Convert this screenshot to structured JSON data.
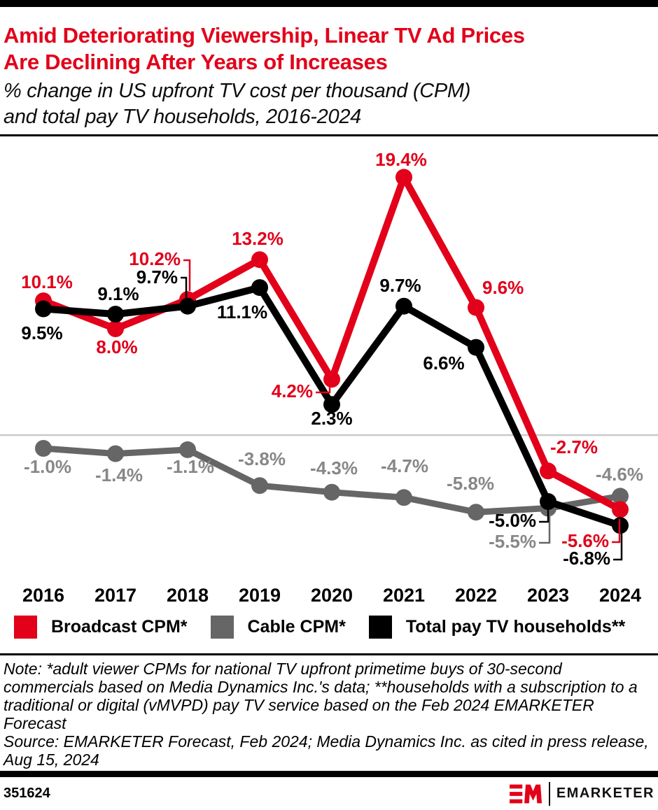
{
  "header": {
    "title_lines": [
      "Amid Deteriorating Viewership, Linear TV Ad Prices",
      "Are Declining After Years of Increases"
    ],
    "subtitle_lines": [
      "% change in US upfront TV cost per thousand (CPM)",
      "and total pay TV households, 2016-2024"
    ]
  },
  "colors": {
    "accent_red": "#e2001a",
    "gray_line": "#666666",
    "gray_label": "#878787",
    "zero_axis": "#c9c9c9",
    "black": "#000000"
  },
  "chart_data": {
    "type": "line",
    "title": "% change in US upfront TV cost per thousand (CPM) and total pay TV households, 2016-2024",
    "xlabel": "",
    "ylabel": "% change",
    "unit": "%",
    "categories": [
      "2016",
      "2017",
      "2018",
      "2019",
      "2020",
      "2021",
      "2022",
      "2023",
      "2024"
    ],
    "series": [
      {
        "id": "broadcast-cpm",
        "name": "Broadcast CPM*",
        "color": "#e2001a",
        "label_color": "#e2001a",
        "values": [
          10.1,
          8.0,
          10.2,
          13.2,
          4.2,
          19.4,
          9.6,
          -2.7,
          -5.6
        ],
        "labels": [
          "10.1%",
          "8.0%",
          "10.2%",
          "13.2%",
          "4.2%",
          "19.4%",
          "9.6%",
          "-2.7%",
          "-5.6%"
        ]
      },
      {
        "id": "cable-cpm",
        "name": "Cable CPM*",
        "color": "#666666",
        "label_color": "#878787",
        "values": [
          -1.0,
          -1.4,
          -1.1,
          -3.8,
          -4.3,
          -4.7,
          -5.8,
          -5.5,
          -4.6
        ],
        "labels": [
          "-1.0%",
          "-1.4%",
          "-1.1%",
          "-3.8%",
          "-4.3%",
          "-4.7%",
          "-5.8%",
          "-5.5%",
          "-4.6%"
        ]
      },
      {
        "id": "pay-tv-households",
        "name": "Total pay TV households**",
        "color": "#000000",
        "label_color": "#000000",
        "values": [
          9.5,
          9.1,
          9.7,
          11.1,
          2.3,
          9.7,
          6.6,
          -5.0,
          -6.8
        ],
        "labels": [
          "9.5%",
          "9.1%",
          "9.7%",
          "11.1%",
          "2.3%",
          "9.7%",
          "6.6%",
          "-5.0%",
          "-6.8%"
        ]
      }
    ],
    "ylim": [
      -8,
      22
    ],
    "zero_line": true,
    "grid": false,
    "legend_position": "bottom"
  },
  "notes": {
    "note_lines": [
      "Note: *adult viewer CPMs for national TV upfront primetime buys of 30-second",
      "commercials based on Media Dynamics Inc.'s data; **households with a subscription to a",
      "traditional or digital (vMVPD) pay TV service based on the Feb 2024 EMARKETER",
      "Forecast"
    ],
    "source_lines": [
      "Source: EMARKETER Forecast, Feb 2024; Media Dynamics Inc. as cited in press release,",
      "Aug 15, 2024"
    ]
  },
  "footer": {
    "chart_id": "351624",
    "brand": "EMARKETER"
  }
}
